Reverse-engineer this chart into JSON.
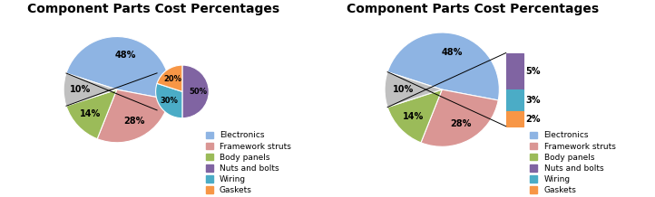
{
  "title": "Component Parts Cost Percentages",
  "labels": [
    "Electronics",
    "Framework struts",
    "Body panels",
    "Nuts and bolts",
    "Wiring",
    "Gaskets"
  ],
  "main_values": [
    48,
    28,
    14,
    10
  ],
  "sub_values": [
    5,
    3,
    2
  ],
  "main_colors": [
    "#8EB4E3",
    "#DA9694",
    "#9BBB59",
    "#C0C0C0"
  ],
  "sub_colors": [
    "#8064A2",
    "#4BACC6",
    "#F79646"
  ],
  "legend_colors": [
    "#8EB4E3",
    "#DA9694",
    "#9BBB59",
    "#8064A2",
    "#4BACC6",
    "#F79646"
  ],
  "background": "#ffffff",
  "title_fontsize": 10,
  "pct_fontsize": 7,
  "legend_fontsize": 6.5
}
